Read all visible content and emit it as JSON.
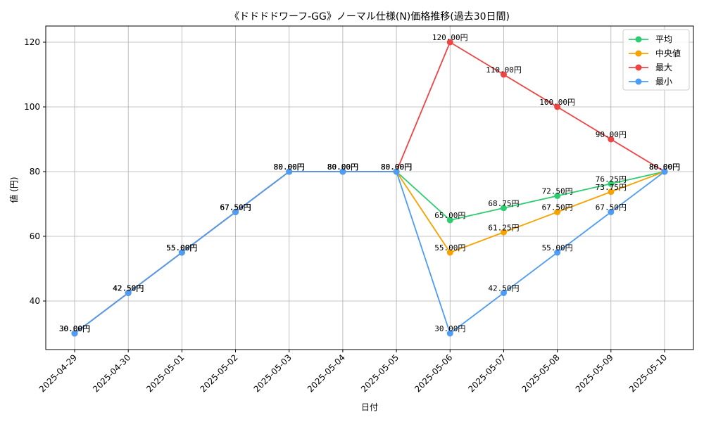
{
  "chart_data": {
    "type": "line",
    "title": "《ドドドドワーフ-GG》ノーマル仕様(N)価格推移(過去30日間)",
    "xlabel": "日付",
    "ylabel": "値 (円)",
    "ylim": [
      25,
      125
    ],
    "yticks": [
      40,
      60,
      80,
      100,
      120
    ],
    "grid": true,
    "legend_position": "top-right",
    "categories": [
      "2025-04-29",
      "2025-04-30",
      "2025-05-01",
      "2025-05-02",
      "2025-05-03",
      "2025-05-04",
      "2025-05-05",
      "2025-05-06",
      "2025-05-07",
      "2025-05-08",
      "2025-05-09",
      "2025-05-10"
    ],
    "series": [
      {
        "name": "平均",
        "color": "#2ecc71",
        "values": [
          30.0,
          42.5,
          55.0,
          67.5,
          80.0,
          80.0,
          80.0,
          65.0,
          68.75,
          72.5,
          76.25,
          80.0
        ],
        "labels": [
          "30.00円",
          "42.50円",
          "55.00円",
          "67.50円",
          "80.00円",
          "80.00円",
          "80.00円",
          "65.00円",
          "68.75円",
          "72.50円",
          "76.25円",
          "80.00円"
        ]
      },
      {
        "name": "中央値",
        "color": "#f5a300",
        "values": [
          30.0,
          42.5,
          55.0,
          67.5,
          80.0,
          80.0,
          80.0,
          55.0,
          61.25,
          67.5,
          73.75,
          80.0
        ],
        "labels": [
          "30.00円",
          "42.50円",
          "55.00円",
          "67.50円",
          "80.00円",
          "80.00円",
          "80.00円",
          "55.00円",
          "61.25円",
          "67.50円",
          "73.75円",
          "80.00円"
        ]
      },
      {
        "name": "最大",
        "color": "#ef4444",
        "values": [
          30.0,
          42.5,
          55.0,
          67.5,
          80.0,
          80.0,
          80.0,
          120.0,
          110.0,
          100.0,
          90.0,
          80.0
        ],
        "labels": [
          "30.00円",
          "42.50円",
          "55.00円",
          "67.50円",
          "80.00円",
          "80.00円",
          "80.00円",
          "120.00円",
          "110.00円",
          "100.00円",
          "90.00円",
          "80.00円"
        ]
      },
      {
        "name": "最小",
        "color": "#4d9cf5",
        "values": [
          30.0,
          42.5,
          55.0,
          67.5,
          80.0,
          80.0,
          80.0,
          30.0,
          42.5,
          55.0,
          67.5,
          80.0
        ],
        "labels": [
          "30.00円",
          "42.50円",
          "55.00円",
          "67.50円",
          "80.00円",
          "80.00円",
          "80.00円",
          "30.00円",
          "42.50円",
          "55.00円",
          "67.50円",
          "80.00円"
        ]
      }
    ]
  }
}
